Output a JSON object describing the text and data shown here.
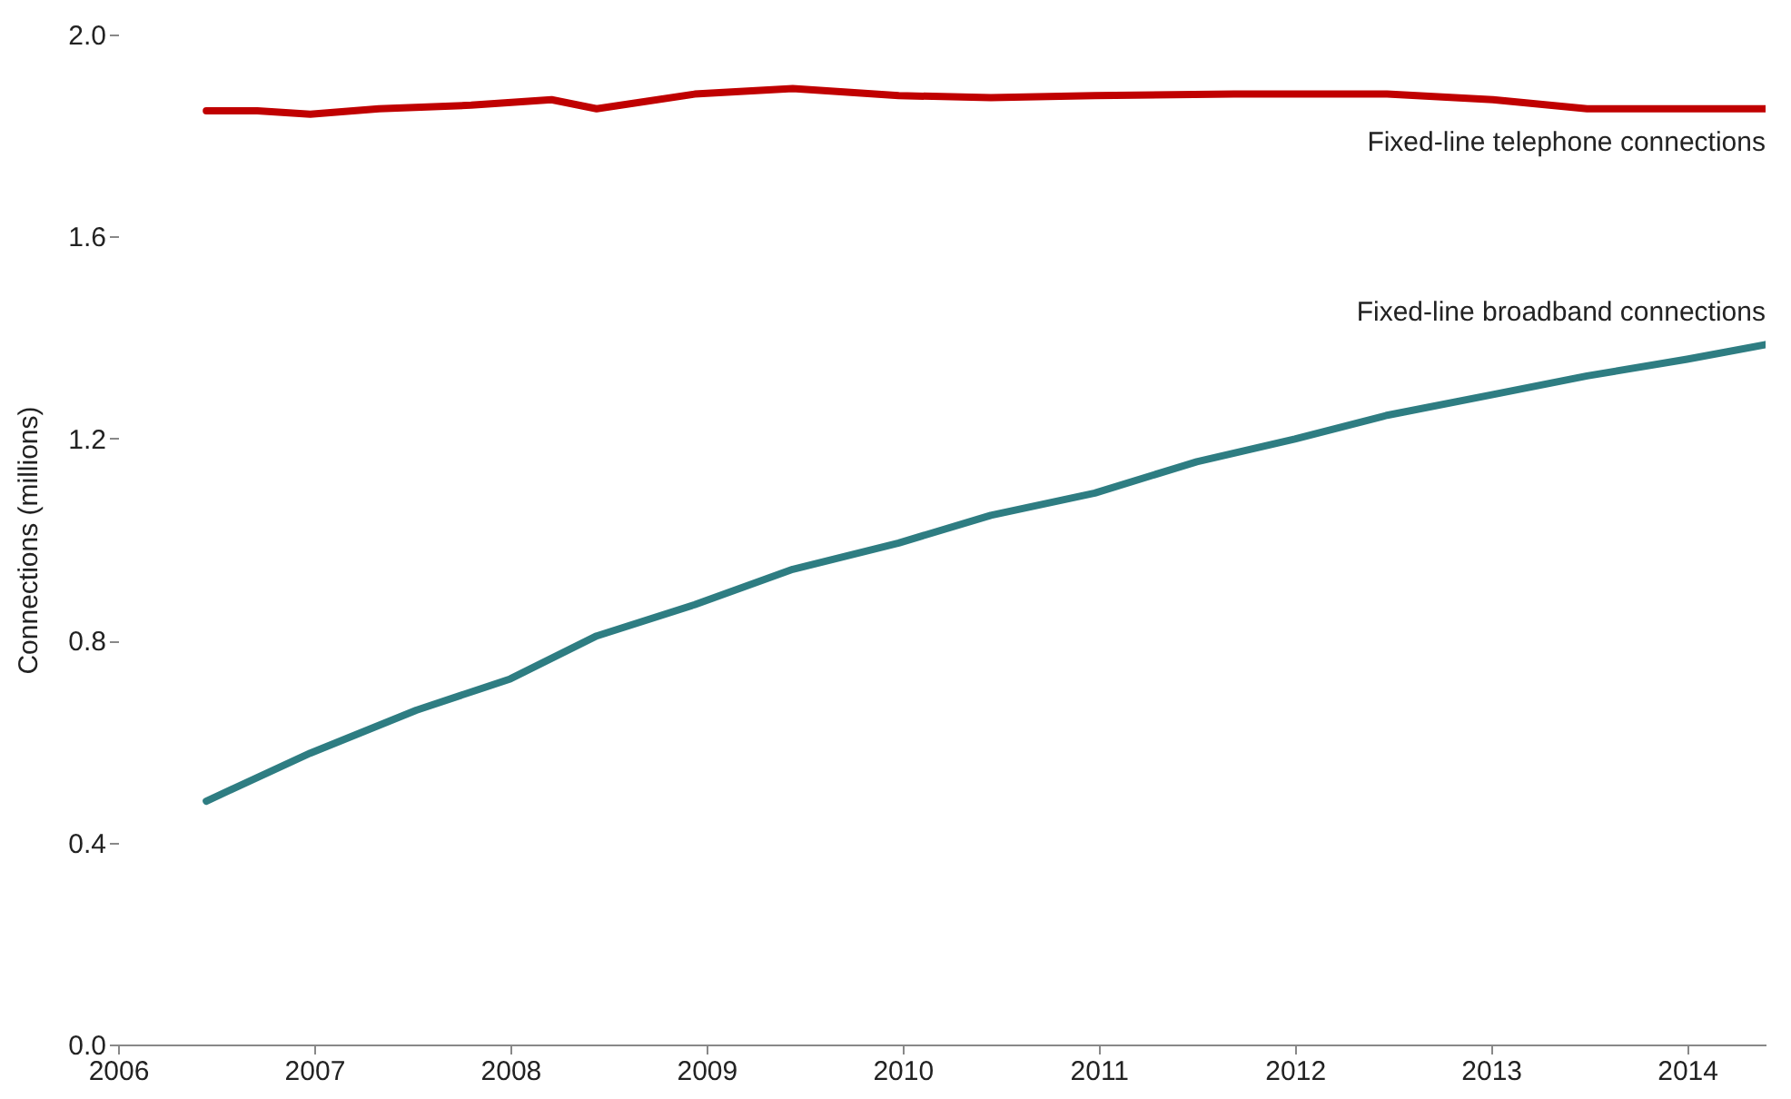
{
  "chart_data": {
    "type": "line",
    "ylabel": "Connections (millions)",
    "xlim": [
      2006,
      2014.4
    ],
    "xticks": [
      2006,
      2007,
      2008,
      2009,
      2010,
      2011,
      2012,
      2013,
      2014
    ],
    "ylim": [
      0,
      2
    ],
    "yticks": [
      {
        "value": 0,
        "label": "0.0"
      },
      0.4,
      0.8,
      1.2,
      1.6,
      {
        "value": 2,
        "label": "2.0"
      }
    ],
    "grid": false,
    "legend": false,
    "series": [
      {
        "name": "Fixed-line telephone connections",
        "color": "#c00000",
        "x": [
          2006.45,
          2006.71,
          2006.98,
          2007.33,
          2007.8,
          2008.21,
          2008.44,
          2008.94,
          2009.44,
          2009.98,
          2010.45,
          2010.98,
          2011.69,
          2012.47,
          2013.01,
          2013.49,
          2014.4
        ],
        "values": [
          1.849,
          1.849,
          1.842,
          1.853,
          1.86,
          1.871,
          1.853,
          1.882,
          1.893,
          1.879,
          1.875,
          1.879,
          1.882,
          1.882,
          1.871,
          1.853,
          1.853
        ]
      },
      {
        "name": "Fixed-line broadband connections",
        "color": "#2e7d82",
        "x": [
          2006.45,
          2006.98,
          2007.52,
          2008.0,
          2008.44,
          2008.94,
          2009.44,
          2009.98,
          2010.45,
          2010.98,
          2011.5,
          2012.0,
          2012.47,
          2013.01,
          2013.49,
          2014.0,
          2014.4
        ],
        "values": [
          0.482,
          0.577,
          0.662,
          0.724,
          0.809,
          0.871,
          0.941,
          0.993,
          1.048,
          1.092,
          1.154,
          1.199,
          1.246,
          1.287,
          1.324,
          1.357,
          1.386
        ]
      }
    ]
  }
}
